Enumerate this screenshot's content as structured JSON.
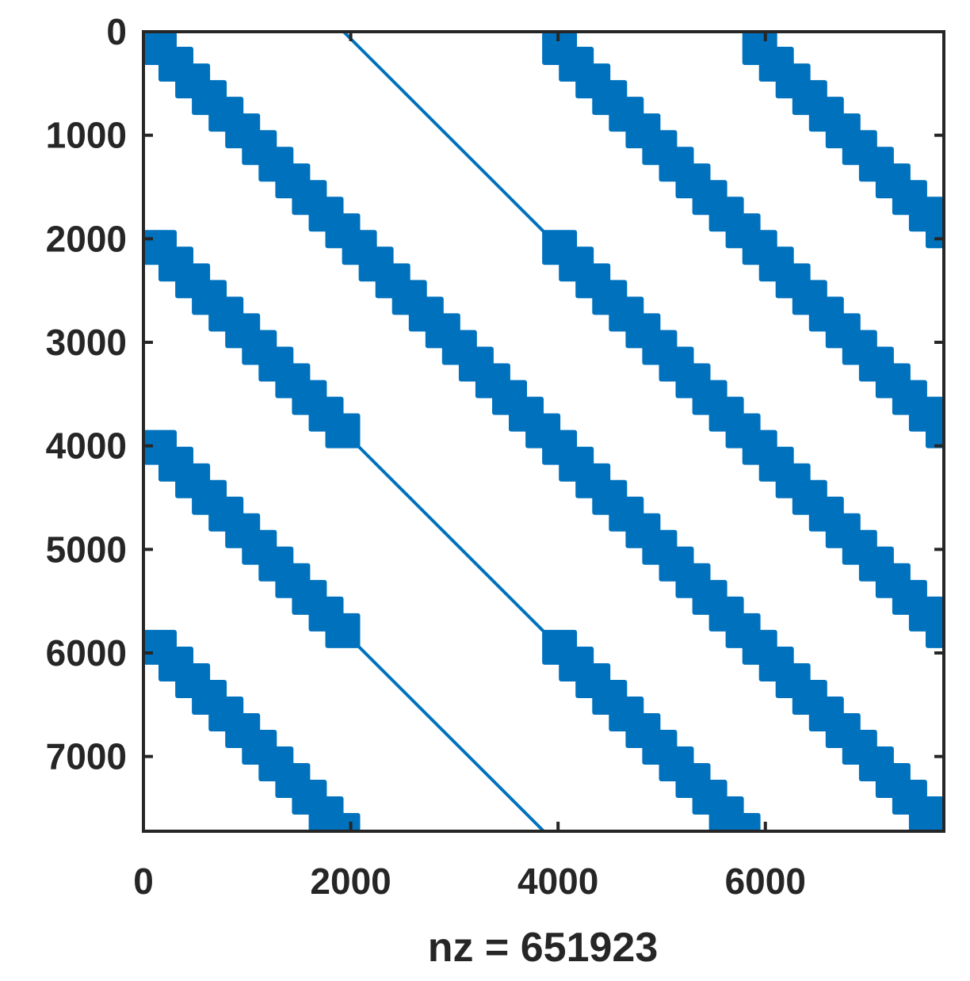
{
  "chart_data": {
    "type": "spy",
    "matrix_size": 7722,
    "xlabel": "nz = 651923",
    "xticks": [
      0,
      2000,
      4000,
      6000
    ],
    "yticks": [
      0,
      1000,
      2000,
      3000,
      4000,
      5000,
      6000,
      7000
    ],
    "xlim": [
      0,
      7722
    ],
    "ylim": [
      0,
      7722
    ],
    "y_direction": "down",
    "marker_color": "#0072BD",
    "grid": false,
    "block_bands": [
      {
        "row_start": 0,
        "row_end": 1931,
        "col_start": 0,
        "col_end": 1931
      },
      {
        "row_start": 0,
        "row_end": 1931,
        "col_start": 3862,
        "col_end": 5793
      },
      {
        "row_start": 0,
        "row_end": 1931,
        "col_start": 5793,
        "col_end": 7722
      },
      {
        "row_start": 1931,
        "row_end": 3862,
        "col_start": 0,
        "col_end": 1931
      },
      {
        "row_start": 1931,
        "row_end": 3862,
        "col_start": 1931,
        "col_end": 3862
      },
      {
        "row_start": 1931,
        "row_end": 3862,
        "col_start": 3862,
        "col_end": 5793
      },
      {
        "row_start": 1931,
        "row_end": 3862,
        "col_start": 5793,
        "col_end": 7722
      },
      {
        "row_start": 3862,
        "row_end": 5793,
        "col_start": 0,
        "col_end": 1931
      },
      {
        "row_start": 3862,
        "row_end": 5793,
        "col_start": 3862,
        "col_end": 5793
      },
      {
        "row_start": 3862,
        "row_end": 5793,
        "col_start": 5793,
        "col_end": 7722
      },
      {
        "row_start": 5793,
        "row_end": 7722,
        "col_start": 0,
        "col_end": 1931
      },
      {
        "row_start": 5793,
        "row_end": 7722,
        "col_start": 3862,
        "col_end": 5793
      },
      {
        "row_start": 5793,
        "row_end": 7722,
        "col_start": 5793,
        "col_end": 7722
      }
    ],
    "diagonal_lines": [
      {
        "row_start": 0,
        "row_end": 1931,
        "col_start": 1931,
        "col_end": 3862
      },
      {
        "row_start": 3862,
        "row_end": 5793,
        "col_start": 1931,
        "col_end": 3862
      },
      {
        "row_start": 5793,
        "row_end": 7722,
        "col_start": 1931,
        "col_end": 3862
      }
    ]
  }
}
